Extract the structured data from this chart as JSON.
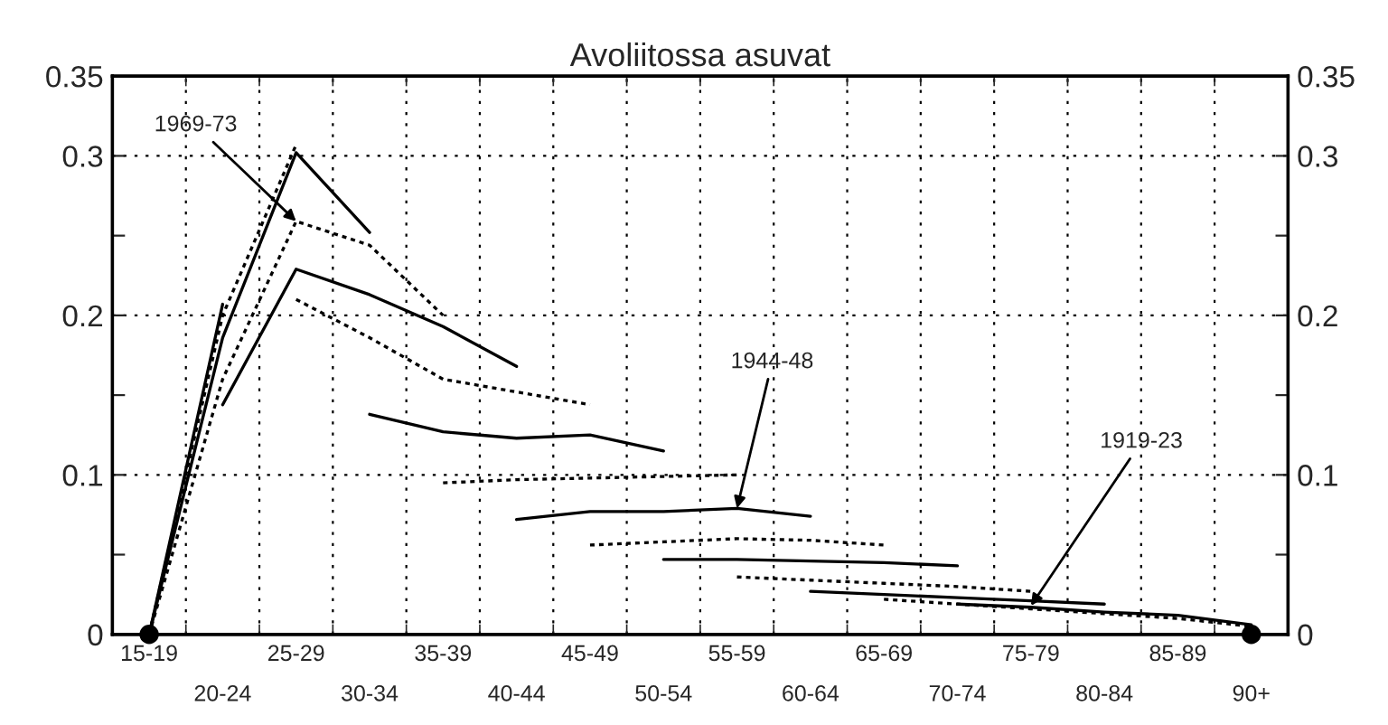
{
  "chart_data": {
    "type": "line",
    "title": "Avoliitossa asuvat",
    "categories": [
      "15-19",
      "20-24",
      "25-29",
      "30-34",
      "35-39",
      "40-44",
      "45-49",
      "50-54",
      "55-59",
      "60-64",
      "65-69",
      "70-74",
      "75-79",
      "80-84",
      "85-89",
      "90+"
    ],
    "series": [
      {
        "color": "#000000",
        "line_style": "solid",
        "values": [
          0,
          0.207,
          null,
          null,
          null,
          null,
          null,
          null,
          null,
          null,
          null,
          null,
          null,
          null,
          null,
          null
        ]
      },
      {
        "color": "#000000",
        "line_style": "solid",
        "values": [
          0,
          0.186,
          0.302,
          0.252,
          null,
          null,
          null,
          null,
          null,
          null,
          null,
          null,
          null,
          null,
          null,
          null
        ]
      },
      {
        "color": "#000000",
        "line_style": "dotted",
        "values": [
          0,
          0.2,
          0.307,
          null,
          null,
          null,
          null,
          null,
          null,
          null,
          null,
          null,
          null,
          null,
          null,
          null
        ]
      },
      {
        "color": "#000000",
        "line_style": "dotted",
        "values": [
          0,
          0.16,
          0.259,
          0.244,
          0.2,
          null,
          null,
          null,
          null,
          null,
          null,
          null,
          null,
          null,
          null,
          null
        ]
      },
      {
        "color": "#000000",
        "line_style": "solid",
        "values": [
          null,
          0.144,
          0.229,
          0.213,
          0.193,
          0.168,
          null,
          null,
          null,
          null,
          null,
          null,
          null,
          null,
          null,
          null
        ]
      },
      {
        "color": "#000000",
        "line_style": "dotted",
        "values": [
          null,
          null,
          0.21,
          0.186,
          0.16,
          0.152,
          0.144,
          null,
          null,
          null,
          null,
          null,
          null,
          null,
          null,
          null
        ]
      },
      {
        "color": "#000000",
        "line_style": "solid",
        "values": [
          null,
          null,
          null,
          0.138,
          0.127,
          0.123,
          0.125,
          0.115,
          null,
          null,
          null,
          null,
          null,
          null,
          null,
          null
        ]
      },
      {
        "color": "#000000",
        "line_style": "dotted",
        "values": [
          null,
          null,
          null,
          null,
          0.095,
          0.097,
          0.098,
          0.099,
          0.1,
          null,
          null,
          null,
          null,
          null,
          null,
          null
        ]
      },
      {
        "color": "#000000",
        "line_style": "solid",
        "values": [
          null,
          null,
          null,
          null,
          null,
          0.072,
          0.077,
          0.077,
          0.079,
          0.074,
          null,
          null,
          null,
          null,
          null,
          null
        ]
      },
      {
        "color": "#000000",
        "line_style": "dotted",
        "values": [
          null,
          null,
          null,
          null,
          null,
          null,
          0.056,
          0.058,
          0.06,
          0.059,
          0.056,
          null,
          null,
          null,
          null,
          null
        ]
      },
      {
        "color": "#000000",
        "line_style": "solid",
        "values": [
          null,
          null,
          null,
          null,
          null,
          null,
          null,
          0.047,
          0.047,
          0.046,
          0.045,
          0.043,
          null,
          null,
          null,
          null
        ]
      },
      {
        "color": "#000000",
        "line_style": "dotted",
        "values": [
          null,
          null,
          null,
          null,
          null,
          null,
          null,
          null,
          0.036,
          0.034,
          0.032,
          0.03,
          0.027,
          null,
          null,
          null
        ]
      },
      {
        "color": "#000000",
        "line_style": "solid",
        "values": [
          null,
          null,
          null,
          null,
          null,
          null,
          null,
          null,
          null,
          0.027,
          0.025,
          0.023,
          0.021,
          0.019,
          null,
          null
        ]
      },
      {
        "color": "#000000",
        "line_style": "dotted",
        "values": [
          null,
          null,
          null,
          null,
          null,
          null,
          null,
          null,
          null,
          null,
          0.022,
          0.019,
          0.016,
          0.013,
          0.01,
          0.005
        ]
      },
      {
        "color": "#000000",
        "line_style": "solid",
        "values": [
          null,
          null,
          null,
          null,
          null,
          null,
          null,
          null,
          null,
          null,
          null,
          0.019,
          0.017,
          0.014,
          0.012,
          0.006
        ]
      },
      {
        "type": "scatter",
        "marker": "circle",
        "color": "#000000",
        "values": [
          0,
          null,
          null,
          null,
          null,
          null,
          null,
          null,
          null,
          null,
          null,
          null,
          null,
          null,
          null,
          0
        ]
      }
    ],
    "ylim": [
      0,
      0.35
    ],
    "yticks": [
      0,
      {
        "value": 0.05,
        "label": null
      },
      {
        "value": 0.1,
        "label": "0.1"
      },
      {
        "value": 0.15,
        "label": null
      },
      {
        "value": 0.2,
        "label": "0.2"
      },
      {
        "value": 0.25,
        "label": null
      },
      {
        "value": 0.3,
        "label": "0.3"
      },
      {
        "value": 0.35,
        "label": "0.35"
      }
    ],
    "y2lim": [
      0,
      0.35
    ],
    "y2ticks": [
      0,
      {
        "value": 0.05,
        "label": null
      },
      {
        "value": 0.1,
        "label": "0.1"
      },
      {
        "value": 0.15,
        "label": null
      },
      {
        "value": 0.2,
        "label": "0.2"
      },
      {
        "value": 0.25,
        "label": null
      },
      {
        "value": 0.3,
        "label": "0.3"
      },
      {
        "value": 0.35,
        "label": "0.35"
      }
    ],
    "grid": true,
    "annotations": [
      {
        "text": "1969-73",
        "x": "25-29",
        "y": 0.259
      },
      {
        "text": "1944-48",
        "x": "55-59",
        "y": 0.079
      },
      {
        "text": "1919-23",
        "x": "75-79",
        "y": 0.018
      }
    ]
  }
}
